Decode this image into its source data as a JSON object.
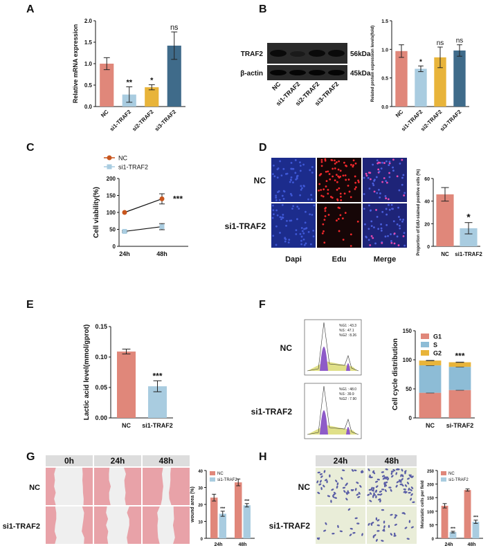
{
  "colors": {
    "nc": "#E0877A",
    "si1": "#A9CCE0",
    "si2": "#E8B43A",
    "si3": "#3F6B8A",
    "dapi": "#2B3FA8",
    "edu": "#C0181E",
    "wound": "#E8A2A8",
    "transwell_bg": "#E9EDD8",
    "transwell_cell": "#5A5EA6"
  },
  "panel_letters": [
    "A",
    "B",
    "C",
    "D",
    "E",
    "F",
    "G",
    "H"
  ],
  "chart_data": [
    {
      "id": "A",
      "type": "bar",
      "categories": [
        "NC",
        "si1-TRAF2",
        "si2-TRAF2",
        "si3-TRAF2"
      ],
      "values": [
        1.0,
        0.28,
        0.45,
        1.42
      ],
      "errors": [
        0.14,
        0.18,
        0.06,
        0.32
      ],
      "significance": [
        "",
        "**",
        "*",
        "ns"
      ],
      "ylabel": "Relative mRNA expression",
      "ylim": [
        0,
        2.0
      ],
      "yticks": [
        "0.0",
        "0.5",
        "1.0",
        "1.5",
        "2.0"
      ]
    },
    {
      "id": "B",
      "type": "bar",
      "categories": [
        "NC",
        "si1-TRAF2",
        "si2-TRAF2",
        "si3-TRAF2"
      ],
      "values": [
        0.97,
        0.66,
        0.86,
        0.98
      ],
      "errors": [
        0.11,
        0.05,
        0.18,
        0.1
      ],
      "significance": [
        "",
        "*",
        "ns",
        "ns"
      ],
      "ylabel": "Related protein expression levels(fold)",
      "ylim": [
        0,
        1.5
      ],
      "yticks": [
        "0.0",
        "0.5",
        "1.0",
        "1.5"
      ]
    },
    {
      "id": "C",
      "type": "line",
      "x": [
        "24h",
        "48h"
      ],
      "series": [
        {
          "name": "NC",
          "values": [
            100,
            140
          ],
          "errors": [
            0,
            15
          ]
        },
        {
          "name": "si1-TRAF2",
          "values": [
            44,
            58
          ],
          "errors": [
            2,
            9
          ]
        }
      ],
      "significance": "***",
      "ylabel": "Cell viability(%)",
      "ylim": [
        0,
        200
      ],
      "yticks": [
        "0",
        "50",
        "100",
        "150",
        "200"
      ],
      "legend": "top-left"
    },
    {
      "id": "D",
      "type": "bar",
      "categories": [
        "NC",
        "si1-TRAF2"
      ],
      "values": [
        46,
        16
      ],
      "errors": [
        6,
        5
      ],
      "significance": [
        "",
        "*"
      ],
      "ylabel": "Proportion of EdU-stained positive cells (%)",
      "ylim": [
        0,
        60
      ],
      "yticks": [
        "0",
        "20",
        "40",
        "60"
      ]
    },
    {
      "id": "E",
      "type": "bar",
      "categories": [
        "NC",
        "si1-TRAF2"
      ],
      "values": [
        0.109,
        0.052
      ],
      "errors": [
        0.004,
        0.009
      ],
      "significance": [
        "",
        "***"
      ],
      "ylabel": "Lactic acid level(mmol/gprot)",
      "ylim": [
        0,
        0.15
      ],
      "yticks": [
        "0.00",
        "0.05",
        "0.10",
        "0.15"
      ]
    },
    {
      "id": "F",
      "type": "bar",
      "stacked": true,
      "categories": [
        "NC",
        "si-TRAF2"
      ],
      "series": [
        {
          "name": "G1",
          "values": [
            43.3,
            48.0
          ]
        },
        {
          "name": "S",
          "values": [
            47.1,
            39.9
          ]
        },
        {
          "name": "G2",
          "values": [
            8.3,
            7.9
          ]
        }
      ],
      "significance": [
        "",
        "***"
      ],
      "ylabel": "Cell cycle distribution",
      "ylim": [
        0,
        150
      ],
      "yticks": [
        "0",
        "50",
        "100",
        "150"
      ],
      "legend": "top-left"
    },
    {
      "id": "G",
      "type": "bar",
      "categories": [
        "24h",
        "48h"
      ],
      "series": [
        {
          "name": "NC",
          "values": [
            24,
            33
          ],
          "errors": [
            2,
            2
          ]
        },
        {
          "name": "si1-TRAF2",
          "values": [
            14.5,
            19.5
          ],
          "errors": [
            1.5,
            1
          ]
        }
      ],
      "significance": [
        "***",
        "***"
      ],
      "ylabel": "wound area (%)",
      "ylim": [
        0,
        40
      ],
      "yticks": [
        "0",
        "10",
        "20",
        "30",
        "40"
      ],
      "legend": "top-left"
    },
    {
      "id": "H",
      "type": "bar",
      "categories": [
        "24h",
        "48h"
      ],
      "series": [
        {
          "name": "NC",
          "values": [
            120,
            178
          ],
          "errors": [
            8,
            4
          ]
        },
        {
          "name": "si1-TRAF2",
          "values": [
            23,
            61
          ],
          "errors": [
            3,
            6
          ]
        }
      ],
      "significance": [
        "***",
        "***"
      ],
      "ylabel": "Metastatic cells per field",
      "ylim": [
        0,
        250
      ],
      "yticks": [
        "0",
        "50",
        "100",
        "150",
        "200",
        "250"
      ],
      "legend": "top-left"
    }
  ],
  "blot": {
    "rows": [
      {
        "label": "TRAF2",
        "size": "56kDa"
      },
      {
        "label": "β-actin",
        "size": "45kDa"
      }
    ],
    "lanes": [
      "NC",
      "si1-TRAF2",
      "si2-TRAF2",
      "si3-TRAF2"
    ]
  },
  "edu_panel": {
    "rows": [
      "NC",
      "si1-TRAF2"
    ],
    "columns": [
      "Dapi",
      "Edu",
      "Merge"
    ]
  },
  "flow": {
    "rows": [
      {
        "label": "NC",
        "stats": [
          "%G1 : 43.3",
          "%S : 47.1",
          "%G2 : 8.26"
        ]
      },
      {
        "label": "si1-TRAF2",
        "stats": [
          "%G1 : 48.0",
          "%S : 39.9",
          "%G2 : 7.90"
        ]
      }
    ]
  },
  "wound_panel": {
    "rows": [
      "NC",
      "si1-TRAF2"
    ],
    "columns": [
      "0h",
      "24h",
      "48h"
    ]
  },
  "transwell_panel": {
    "rows": [
      "NC",
      "si1-TRAF2"
    ],
    "columns": [
      "24h",
      "48h"
    ]
  }
}
